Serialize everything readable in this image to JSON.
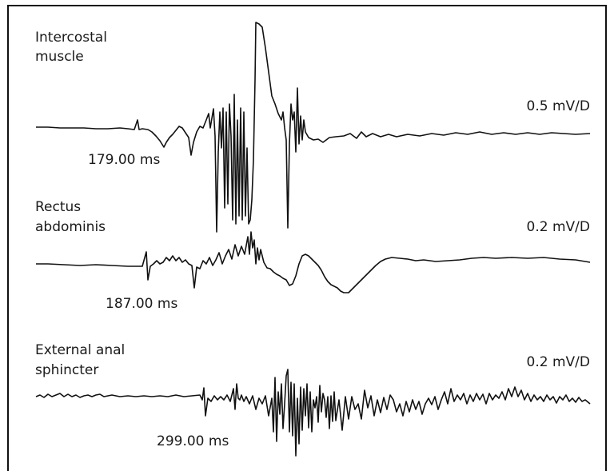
{
  "traces": [
    {
      "muscle_line1": "Intercostal",
      "muscle_line2": "muscle",
      "scale": "0.5 mV/D",
      "latency": "179.00 ms"
    },
    {
      "muscle_line1": "Rectus",
      "muscle_line2": "abdominis",
      "scale": "0.2 mV/D",
      "latency": "187.00 ms"
    },
    {
      "muscle_line1": "External anal",
      "muscle_line2": "sphincter",
      "scale": "0.2 mV/D",
      "latency": "299.00 ms"
    }
  ],
  "colors": {
    "trace": "#111111",
    "text": "#1a1a1a",
    "border": "#111111"
  }
}
